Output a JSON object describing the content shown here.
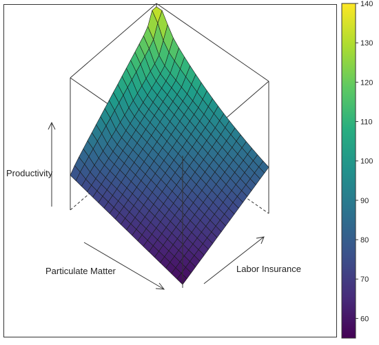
{
  "chart_data": {
    "type": "surface3d",
    "xlabel": "Particulate Matter",
    "ylabel": "Labor Insurance",
    "zlabel": "Productivity",
    "colormap": "viridis",
    "colorbar": {
      "range": [
        55,
        140
      ],
      "ticks": [
        60,
        70,
        80,
        90,
        100,
        110,
        120,
        130,
        140
      ]
    },
    "surface": {
      "grid": [
        21,
        21
      ],
      "z_min": 57,
      "z_ridge_max": 133,
      "z_far_corner": 118,
      "z_left_corner": 76,
      "z_right_corner": 83,
      "description_values": {
        "front_corner": 57,
        "left_corner": 76,
        "right_corner": 83,
        "back_peak": 133,
        "back_right_edge": 118
      }
    }
  }
}
